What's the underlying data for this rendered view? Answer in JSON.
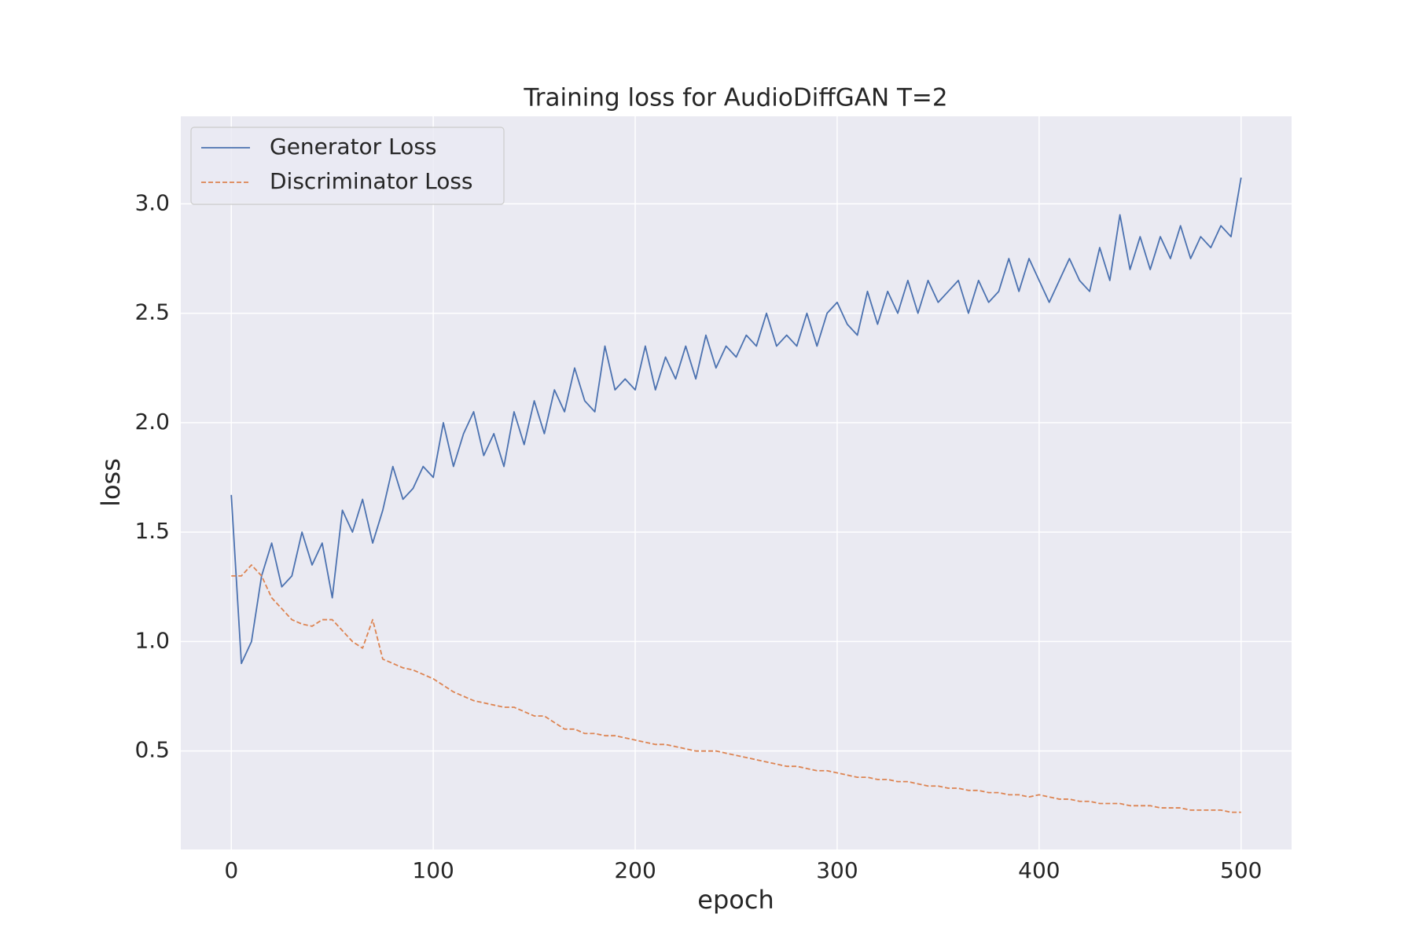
{
  "chart_data": {
    "type": "line",
    "title": "Training loss for AudioDiffGAN T=2",
    "x_label": "epoch",
    "y_label": "loss",
    "x": [
      0,
      5,
      10,
      15,
      20,
      25,
      30,
      35,
      40,
      45,
      50,
      55,
      60,
      65,
      70,
      75,
      80,
      85,
      90,
      95,
      100,
      105,
      110,
      115,
      120,
      125,
      130,
      135,
      140,
      145,
      150,
      155,
      160,
      165,
      170,
      175,
      180,
      185,
      190,
      195,
      200,
      205,
      210,
      215,
      220,
      225,
      230,
      235,
      240,
      245,
      250,
      255,
      260,
      265,
      270,
      275,
      280,
      285,
      290,
      295,
      300,
      305,
      310,
      315,
      320,
      325,
      330,
      335,
      340,
      345,
      350,
      355,
      360,
      365,
      370,
      375,
      380,
      385,
      390,
      395,
      400,
      405,
      410,
      415,
      420,
      425,
      430,
      435,
      440,
      445,
      450,
      455,
      460,
      465,
      470,
      475,
      480,
      485,
      490,
      495,
      500
    ],
    "series": [
      {
        "name": "Generator Loss",
        "color": "#4c72b0",
        "linestyle": "solid",
        "values": [
          1.67,
          0.9,
          1.0,
          1.3,
          1.45,
          1.25,
          1.3,
          1.5,
          1.35,
          1.45,
          1.2,
          1.6,
          1.5,
          1.65,
          1.45,
          1.6,
          1.8,
          1.65,
          1.7,
          1.8,
          1.75,
          2.0,
          1.8,
          1.95,
          2.05,
          1.85,
          1.95,
          1.8,
          2.05,
          1.9,
          2.1,
          1.95,
          2.15,
          2.05,
          2.25,
          2.1,
          2.05,
          2.35,
          2.15,
          2.2,
          2.15,
          2.35,
          2.15,
          2.3,
          2.2,
          2.35,
          2.2,
          2.4,
          2.25,
          2.35,
          2.3,
          2.4,
          2.35,
          2.5,
          2.35,
          2.4,
          2.35,
          2.5,
          2.35,
          2.5,
          2.55,
          2.45,
          2.4,
          2.6,
          2.45,
          2.6,
          2.5,
          2.65,
          2.5,
          2.65,
          2.55,
          2.6,
          2.65,
          2.5,
          2.65,
          2.55,
          2.6,
          2.75,
          2.6,
          2.75,
          2.65,
          2.55,
          2.65,
          2.75,
          2.65,
          2.6,
          2.8,
          2.65,
          2.95,
          2.7,
          2.85,
          2.7,
          2.85,
          2.75,
          2.9,
          2.75,
          2.85,
          2.8,
          2.9,
          2.85,
          3.12
        ]
      },
      {
        "name": "Discriminator Loss",
        "color": "#dd8452",
        "linestyle": "dashed",
        "values": [
          1.3,
          1.3,
          1.35,
          1.3,
          1.2,
          1.15,
          1.1,
          1.08,
          1.07,
          1.1,
          1.1,
          1.05,
          1.0,
          0.97,
          1.1,
          0.92,
          0.9,
          0.88,
          0.87,
          0.85,
          0.83,
          0.8,
          0.77,
          0.75,
          0.73,
          0.72,
          0.71,
          0.7,
          0.7,
          0.68,
          0.66,
          0.66,
          0.63,
          0.6,
          0.6,
          0.58,
          0.58,
          0.57,
          0.57,
          0.56,
          0.55,
          0.54,
          0.53,
          0.53,
          0.52,
          0.51,
          0.5,
          0.5,
          0.5,
          0.49,
          0.48,
          0.47,
          0.46,
          0.45,
          0.44,
          0.43,
          0.43,
          0.42,
          0.41,
          0.41,
          0.4,
          0.39,
          0.38,
          0.38,
          0.37,
          0.37,
          0.36,
          0.36,
          0.35,
          0.34,
          0.34,
          0.33,
          0.33,
          0.32,
          0.32,
          0.31,
          0.31,
          0.3,
          0.3,
          0.29,
          0.3,
          0.29,
          0.28,
          0.28,
          0.27,
          0.27,
          0.26,
          0.26,
          0.26,
          0.25,
          0.25,
          0.25,
          0.24,
          0.24,
          0.24,
          0.23,
          0.23,
          0.23,
          0.23,
          0.22,
          0.22
        ]
      }
    ],
    "xlim": [
      -25,
      525
    ],
    "xticks": [
      0,
      100,
      200,
      300,
      400,
      500
    ],
    "ylim": [
      0.05,
      3.4
    ],
    "yticks": [
      0.5,
      {
        "value": 1,
        "label": "1.0"
      },
      1.5,
      {
        "value": 2,
        "label": "2.0"
      },
      2.5,
      {
        "value": 3,
        "label": "3.0"
      }
    ],
    "grid": true,
    "legend": "upper left"
  }
}
